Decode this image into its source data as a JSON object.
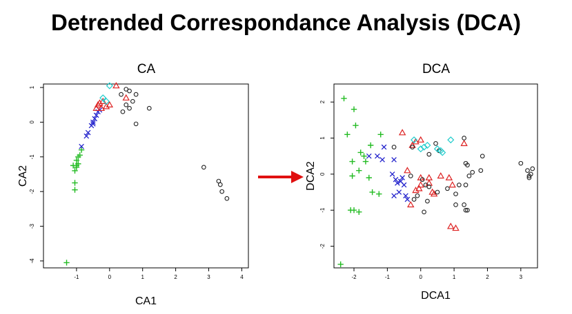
{
  "page": {
    "title": "Detrended Correspondance Analysis (DCA)",
    "arrow_color": "#e01010"
  },
  "colors": {
    "green": "#22bb22",
    "blue": "#2222cc",
    "red": "#dd2222",
    "black": "#222222",
    "cyan": "#22cccc"
  },
  "chart_data": [
    {
      "type": "scatter",
      "title": "CA",
      "xlabel": "CA1",
      "ylabel": "CA2",
      "xlim": [
        -2,
        4.2
      ],
      "ylim": [
        -4.2,
        1.1
      ],
      "xticks": [
        -1,
        0,
        1,
        2,
        3,
        4
      ],
      "yticks": [
        -4,
        -3,
        -2,
        -1,
        0,
        1
      ],
      "grid": false,
      "legend": "none",
      "series": [
        {
          "color": "green",
          "marker": "plus",
          "points": [
            [
              -1.3,
              -4.05
            ],
            [
              -1.05,
              -1.95
            ],
            [
              -1.05,
              -1.75
            ],
            [
              -1.05,
              -1.4
            ],
            [
              -1.0,
              -1.25
            ],
            [
              -1.0,
              -1.1
            ],
            [
              -0.95,
              -1.0
            ],
            [
              -0.9,
              -0.95
            ],
            [
              -0.85,
              -0.8
            ],
            [
              -1.1,
              -1.25
            ],
            [
              -1.0,
              -1.3
            ],
            [
              -0.95,
              -1.2
            ]
          ]
        },
        {
          "color": "blue",
          "marker": "cross",
          "points": [
            [
              -0.85,
              -0.7
            ],
            [
              -0.7,
              -0.4
            ],
            [
              -0.65,
              -0.3
            ],
            [
              -0.55,
              -0.1
            ],
            [
              -0.5,
              0.0
            ],
            [
              -0.45,
              0.1
            ],
            [
              -0.4,
              0.2
            ],
            [
              -0.35,
              0.3
            ],
            [
              -0.3,
              0.35
            ],
            [
              -0.5,
              -0.05
            ]
          ]
        },
        {
          "color": "red",
          "marker": "triangle",
          "points": [
            [
              -0.4,
              0.4
            ],
            [
              -0.35,
              0.5
            ],
            [
              -0.3,
              0.55
            ],
            [
              -0.2,
              0.6
            ],
            [
              -0.1,
              0.45
            ],
            [
              0.0,
              0.5
            ],
            [
              0.2,
              1.05
            ],
            [
              0.5,
              0.7
            ],
            [
              -0.25,
              0.4
            ]
          ]
        },
        {
          "color": "black",
          "marker": "circle",
          "points": [
            [
              0.35,
              0.8
            ],
            [
              0.5,
              0.95
            ],
            [
              0.6,
              0.9
            ],
            [
              0.8,
              0.8
            ],
            [
              0.7,
              0.6
            ],
            [
              1.2,
              0.4
            ],
            [
              0.8,
              -0.05
            ],
            [
              0.4,
              0.3
            ],
            [
              0.6,
              0.4
            ],
            [
              0.5,
              0.5
            ],
            [
              2.85,
              -1.3
            ],
            [
              3.3,
              -1.7
            ],
            [
              3.35,
              -1.8
            ],
            [
              3.4,
              -2.0
            ],
            [
              3.55,
              -2.2
            ]
          ]
        },
        {
          "color": "cyan",
          "marker": "diamond",
          "points": [
            [
              0.0,
              1.05
            ],
            [
              -0.2,
              0.7
            ],
            [
              -0.1,
              0.6
            ]
          ]
        }
      ]
    },
    {
      "type": "scatter",
      "title": "DCA",
      "xlabel": "DCA1",
      "ylabel": "DCA2",
      "xlim": [
        -2.6,
        3.5
      ],
      "ylim": [
        -2.6,
        2.5
      ],
      "xticks": [
        -2,
        -1,
        0,
        1,
        2,
        3
      ],
      "yticks": [
        -2,
        -1,
        0,
        1,
        2
      ],
      "grid": false,
      "legend": "none",
      "series": [
        {
          "color": "green",
          "marker": "plus",
          "points": [
            [
              -2.3,
              2.1
            ],
            [
              -2.0,
              1.8
            ],
            [
              -1.95,
              1.35
            ],
            [
              -2.2,
              1.1
            ],
            [
              -1.2,
              1.1
            ],
            [
              -1.5,
              0.8
            ],
            [
              -1.8,
              0.6
            ],
            [
              -1.7,
              0.5
            ],
            [
              -2.05,
              0.35
            ],
            [
              -1.65,
              0.35
            ],
            [
              -1.85,
              0.1
            ],
            [
              -2.05,
              -0.05
            ],
            [
              -1.55,
              -0.1
            ],
            [
              -1.45,
              -0.5
            ],
            [
              -1.25,
              -0.55
            ],
            [
              -2.1,
              -1.0
            ],
            [
              -2.0,
              -1.0
            ],
            [
              -1.85,
              -1.05
            ],
            [
              -2.4,
              -2.5
            ]
          ]
        },
        {
          "color": "blue",
          "marker": "cross",
          "points": [
            [
              -1.1,
              0.75
            ],
            [
              -1.3,
              0.5
            ],
            [
              -1.55,
              0.5
            ],
            [
              -0.8,
              0.4
            ],
            [
              -1.15,
              0.4
            ],
            [
              -0.85,
              0.0
            ],
            [
              -0.75,
              -0.15
            ],
            [
              -0.7,
              -0.25
            ],
            [
              -0.6,
              -0.2
            ],
            [
              -0.5,
              -0.3
            ],
            [
              -0.55,
              -0.1
            ],
            [
              -0.8,
              -0.6
            ],
            [
              -0.4,
              -0.7
            ],
            [
              -0.65,
              -0.5
            ],
            [
              -0.45,
              -0.6
            ]
          ]
        },
        {
          "color": "red",
          "marker": "triangle",
          "points": [
            [
              -0.55,
              1.15
            ],
            [
              -0.25,
              0.8
            ],
            [
              -0.15,
              0.9
            ],
            [
              0.0,
              0.95
            ],
            [
              1.3,
              0.85
            ],
            [
              -0.4,
              0.1
            ],
            [
              0.0,
              -0.1
            ],
            [
              -0.05,
              -0.4
            ],
            [
              -0.15,
              -0.45
            ],
            [
              0.25,
              -0.25
            ],
            [
              0.35,
              -0.5
            ],
            [
              0.6,
              -0.05
            ],
            [
              0.85,
              -0.1
            ],
            [
              -0.3,
              -0.85
            ],
            [
              0.4,
              -0.55
            ],
            [
              0.0,
              -0.3
            ],
            [
              0.9,
              -1.45
            ],
            [
              1.05,
              -1.5
            ],
            [
              0.95,
              -0.3
            ],
            [
              0.25,
              -0.1
            ]
          ]
        },
        {
          "color": "black",
          "marker": "circle",
          "points": [
            [
              -0.8,
              0.75
            ],
            [
              -0.25,
              0.75
            ],
            [
              0.25,
              0.55
            ],
            [
              0.55,
              0.65
            ],
            [
              0.45,
              0.85
            ],
            [
              1.3,
              1.0
            ],
            [
              1.35,
              0.3
            ],
            [
              1.4,
              0.25
            ],
            [
              1.55,
              0.05
            ],
            [
              1.45,
              -0.05
            ],
            [
              1.15,
              -0.3
            ],
            [
              1.05,
              -0.55
            ],
            [
              1.35,
              -0.3
            ],
            [
              1.8,
              0.1
            ],
            [
              1.85,
              0.5
            ],
            [
              1.05,
              -0.85
            ],
            [
              1.3,
              -0.85
            ],
            [
              1.35,
              -1.0
            ],
            [
              1.4,
              -1.0
            ],
            [
              0.1,
              -1.05
            ],
            [
              -0.2,
              -0.7
            ],
            [
              -0.1,
              -0.6
            ],
            [
              0.2,
              -0.75
            ],
            [
              0.15,
              -0.3
            ],
            [
              0.5,
              -0.5
            ],
            [
              0.8,
              -0.4
            ],
            [
              -0.3,
              -0.05
            ],
            [
              0.05,
              -0.15
            ],
            [
              0.25,
              -0.35
            ],
            [
              3.0,
              0.3
            ],
            [
              3.2,
              0.1
            ],
            [
              3.25,
              -0.05
            ],
            [
              3.3,
              0.0
            ],
            [
              3.35,
              0.15
            ],
            [
              3.25,
              -0.1
            ]
          ]
        },
        {
          "color": "cyan",
          "marker": "diamond",
          "points": [
            [
              -0.2,
              0.95
            ],
            [
              0.0,
              0.7
            ],
            [
              0.2,
              0.8
            ],
            [
              0.5,
              0.7
            ],
            [
              0.6,
              0.65
            ],
            [
              0.65,
              0.6
            ],
            [
              0.9,
              0.95
            ],
            [
              0.1,
              0.75
            ]
          ]
        }
      ]
    }
  ]
}
